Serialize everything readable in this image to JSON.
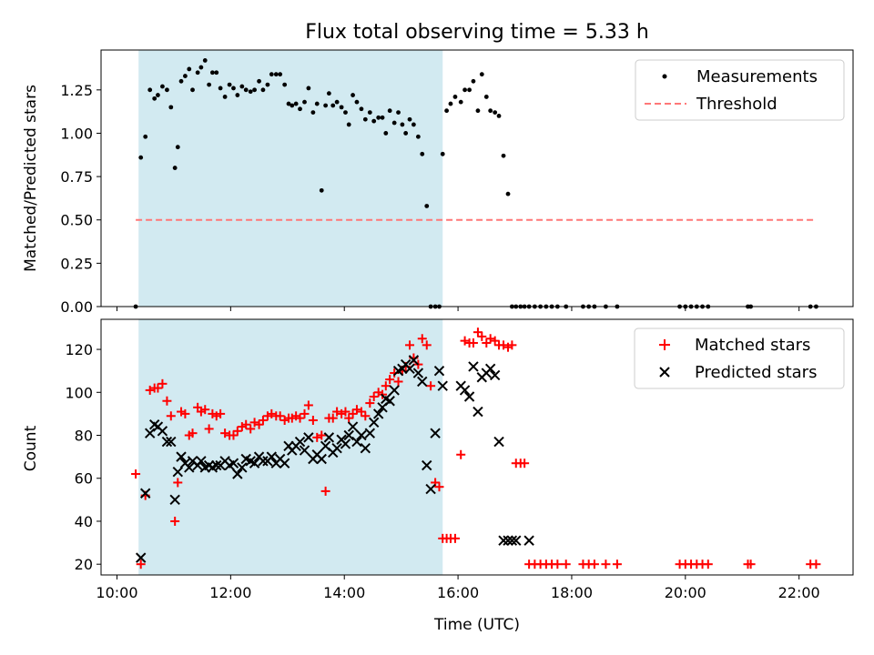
{
  "chart_data": [
    {
      "type": "scatter",
      "title": "Flux total observing time = 5.33 h",
      "ylabel": "Matched/Predicted stars",
      "xlabel": "",
      "x_unit": "hours (UTC)",
      "xlim": [
        9.72,
        22.95
      ],
      "ylim": [
        0,
        1.48
      ],
      "yticks": [
        0.0,
        0.25,
        0.5,
        0.75,
        1.0,
        1.25
      ],
      "ytick_labels": [
        "0.00",
        "0.25",
        "0.50",
        "0.75",
        "1.00",
        "1.25"
      ],
      "xticks": [
        10,
        12,
        14,
        16,
        18,
        20,
        22
      ],
      "shaded_span": [
        10.38,
        15.73
      ],
      "shade_color": "#add8e6",
      "legend": "top-right",
      "grid": false,
      "series": [
        {
          "name": "Measurements",
          "marker": "dot",
          "color": "#000000",
          "x": [
            10.33,
            10.42,
            10.5,
            10.58,
            10.66,
            10.72,
            10.8,
            10.88,
            10.95,
            11.02,
            11.07,
            11.13,
            11.2,
            11.27,
            11.33,
            11.42,
            11.48,
            11.55,
            11.62,
            11.68,
            11.75,
            11.82,
            11.9,
            11.98,
            12.05,
            12.12,
            12.2,
            12.27,
            12.35,
            12.42,
            12.5,
            12.57,
            12.65,
            12.72,
            12.8,
            12.87,
            12.95,
            13.02,
            13.08,
            13.15,
            13.22,
            13.3,
            13.37,
            13.45,
            13.52,
            13.6,
            13.67,
            13.73,
            13.8,
            13.87,
            13.95,
            14.02,
            14.08,
            14.15,
            14.22,
            14.3,
            14.37,
            14.45,
            14.52,
            14.6,
            14.67,
            14.73,
            14.8,
            14.88,
            14.95,
            15.02,
            15.08,
            15.15,
            15.22,
            15.3,
            15.37,
            15.45,
            15.52,
            15.6,
            15.67,
            15.73,
            15.8,
            15.87,
            15.95,
            16.05,
            16.12,
            16.2,
            16.27,
            16.35,
            16.42,
            16.5,
            16.57,
            16.65,
            16.72,
            16.8,
            16.88,
            16.95,
            17.02,
            17.1,
            17.17,
            17.25,
            17.35,
            17.45,
            17.55,
            17.65,
            17.75,
            17.9,
            18.2,
            18.3,
            18.4,
            18.6,
            18.8,
            19.9,
            20.0,
            20.1,
            20.2,
            20.3,
            20.4,
            21.1,
            21.15,
            22.2,
            22.3
          ],
          "y": [
            0.0,
            0.86,
            0.98,
            1.25,
            1.2,
            1.22,
            1.27,
            1.25,
            1.15,
            0.8,
            0.92,
            1.3,
            1.33,
            1.37,
            1.25,
            1.35,
            1.38,
            1.42,
            1.28,
            1.35,
            1.35,
            1.26,
            1.21,
            1.28,
            1.26,
            1.22,
            1.27,
            1.25,
            1.24,
            1.25,
            1.3,
            1.25,
            1.28,
            1.34,
            1.34,
            1.34,
            1.28,
            1.17,
            1.16,
            1.17,
            1.14,
            1.18,
            1.26,
            1.12,
            1.17,
            0.67,
            1.16,
            1.23,
            1.16,
            1.18,
            1.15,
            1.12,
            1.05,
            1.22,
            1.18,
            1.14,
            1.08,
            1.12,
            1.07,
            1.09,
            1.09,
            1.0,
            1.13,
            1.06,
            1.12,
            1.05,
            1.0,
            1.08,
            1.05,
            0.98,
            0.88,
            0.58,
            0.0,
            0.0,
            0.0,
            0.88,
            1.13,
            1.17,
            1.21,
            1.18,
            1.25,
            1.25,
            1.3,
            1.13,
            1.34,
            1.21,
            1.13,
            1.12,
            1.1,
            0.87,
            0.65,
            0.0,
            0.0,
            0.0,
            0.0,
            0.0,
            0.0,
            0.0,
            0.0,
            0.0,
            0.0,
            0.0,
            0.0,
            0.0,
            0.0,
            0.0,
            0.0,
            0.0,
            0.0,
            0.0,
            0.0,
            0.0,
            0.0,
            0.0,
            0.0,
            0.0,
            0.0
          ]
        },
        {
          "name": "Threshold",
          "type": "line",
          "style": "dashed",
          "color": "#ff7777",
          "x": [
            10.33,
            22.3
          ],
          "y": [
            0.5,
            0.5
          ]
        }
      ]
    },
    {
      "type": "scatter",
      "title": "",
      "ylabel": "Count",
      "xlabel": "Time (UTC)",
      "x_unit": "hours (UTC)",
      "xlim": [
        9.72,
        22.95
      ],
      "ylim": [
        15,
        134
      ],
      "yticks": [
        20,
        40,
        60,
        80,
        100,
        120
      ],
      "xticks": [
        10,
        12,
        14,
        16,
        18,
        20,
        22
      ],
      "xtick_labels": [
        "10:00",
        "12:00",
        "14:00",
        "16:00",
        "18:00",
        "20:00",
        "22:00"
      ],
      "shaded_span": [
        10.38,
        15.73
      ],
      "shade_color": "#add8e6",
      "legend": "top-right",
      "grid": false,
      "series": [
        {
          "name": "Matched stars",
          "marker": "plus",
          "color": "#ff0000",
          "x": [
            10.33,
            10.42,
            10.5,
            10.58,
            10.66,
            10.72,
            10.8,
            10.88,
            10.95,
            11.02,
            11.07,
            11.13,
            11.2,
            11.27,
            11.33,
            11.42,
            11.48,
            11.55,
            11.62,
            11.68,
            11.75,
            11.82,
            11.9,
            11.98,
            12.05,
            12.12,
            12.2,
            12.27,
            12.35,
            12.42,
            12.5,
            12.57,
            12.65,
            12.72,
            12.8,
            12.87,
            12.95,
            13.02,
            13.08,
            13.15,
            13.22,
            13.3,
            13.37,
            13.45,
            13.52,
            13.6,
            13.67,
            13.73,
            13.8,
            13.87,
            13.95,
            14.02,
            14.08,
            14.15,
            14.22,
            14.3,
            14.37,
            14.45,
            14.52,
            14.6,
            14.67,
            14.73,
            14.8,
            14.88,
            14.95,
            15.02,
            15.08,
            15.15,
            15.22,
            15.3,
            15.37,
            15.45,
            15.52,
            15.6,
            15.67,
            15.73,
            15.8,
            15.87,
            15.95,
            16.05,
            16.12,
            16.2,
            16.27,
            16.35,
            16.42,
            16.5,
            16.57,
            16.65,
            16.72,
            16.8,
            16.88,
            16.95,
            17.02,
            17.1,
            17.17,
            17.25,
            17.35,
            17.45,
            17.55,
            17.65,
            17.75,
            17.9,
            18.2,
            18.3,
            18.4,
            18.6,
            18.8,
            19.9,
            20.0,
            20.1,
            20.2,
            20.3,
            20.4,
            21.1,
            21.15,
            22.2,
            22.3
          ],
          "y": [
            62,
            20,
            52,
            101,
            102,
            102,
            104,
            96,
            89,
            40,
            58,
            91,
            90,
            80,
            81,
            93,
            91,
            92,
            83,
            90,
            89,
            90,
            81,
            80,
            80,
            82,
            84,
            85,
            83,
            86,
            85,
            87,
            89,
            90,
            89,
            89,
            87,
            88,
            88,
            89,
            88,
            90,
            94,
            87,
            79,
            80,
            54,
            88,
            88,
            91,
            90,
            91,
            88,
            90,
            92,
            91,
            89,
            95,
            98,
            100,
            99,
            103,
            106,
            109,
            105,
            110,
            112,
            122,
            116,
            113,
            125,
            122,
            103,
            58,
            56,
            32,
            32,
            32,
            32,
            71,
            124,
            123,
            123,
            128,
            126,
            123,
            125,
            124,
            122,
            122,
            121,
            122,
            67,
            67,
            67,
            20,
            20,
            20,
            20,
            20,
            20,
            20,
            20,
            20,
            20,
            20,
            20,
            20,
            20,
            20,
            20,
            20,
            20,
            20,
            20,
            20,
            20
          ]
        },
        {
          "name": "Predicted stars",
          "marker": "x",
          "color": "#000000",
          "x": [
            10.42,
            10.5,
            10.58,
            10.66,
            10.72,
            10.8,
            10.88,
            10.95,
            11.02,
            11.07,
            11.13,
            11.2,
            11.27,
            11.33,
            11.42,
            11.48,
            11.55,
            11.62,
            11.68,
            11.75,
            11.82,
            11.9,
            11.98,
            12.05,
            12.12,
            12.2,
            12.27,
            12.35,
            12.42,
            12.5,
            12.57,
            12.65,
            12.72,
            12.8,
            12.87,
            12.95,
            13.02,
            13.08,
            13.15,
            13.22,
            13.3,
            13.37,
            13.45,
            13.52,
            13.6,
            13.67,
            13.73,
            13.8,
            13.87,
            13.95,
            14.02,
            14.08,
            14.15,
            14.22,
            14.3,
            14.37,
            14.45,
            14.52,
            14.6,
            14.67,
            14.73,
            14.8,
            14.88,
            14.95,
            15.02,
            15.08,
            15.15,
            15.22,
            15.3,
            15.37,
            15.45,
            15.52,
            15.6,
            15.67,
            15.73,
            16.05,
            16.12,
            16.2,
            16.27,
            16.35,
            16.42,
            16.5,
            16.57,
            16.65,
            16.72,
            16.8,
            16.88,
            16.95,
            17.02,
            17.25
          ],
          "y": [
            23,
            53,
            81,
            85,
            84,
            82,
            77,
            77,
            50,
            63,
            70,
            67,
            65,
            68,
            66,
            68,
            65,
            66,
            65,
            66,
            66,
            68,
            66,
            67,
            62,
            65,
            69,
            68,
            67,
            70,
            68,
            68,
            70,
            67,
            69,
            67,
            75,
            73,
            75,
            77,
            73,
            79,
            69,
            71,
            69,
            75,
            79,
            72,
            74,
            78,
            76,
            80,
            84,
            77,
            80,
            74,
            81,
            86,
            90,
            93,
            97,
            96,
            101,
            110,
            111,
            113,
            111,
            115,
            109,
            105,
            66,
            55,
            81,
            110,
            103,
            103,
            101,
            98,
            112,
            91,
            107,
            109,
            111,
            108,
            77,
            31,
            31,
            31,
            31,
            31
          ]
        }
      ]
    }
  ]
}
